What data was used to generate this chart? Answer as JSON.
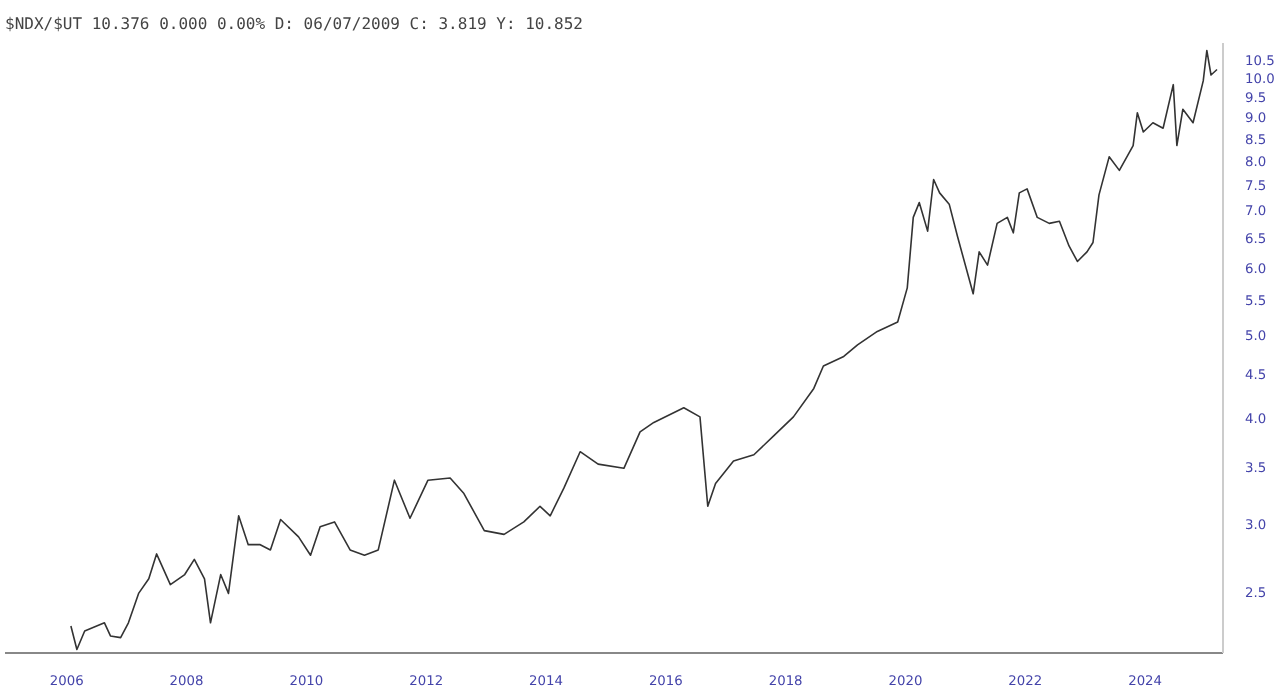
{
  "chart_data": {
    "type": "line",
    "title": "$NDX/$UT 10.376 0.000 0.00% D: 06/07/2009 C: 3.819 Y: 10.852",
    "log": "y",
    "grid": false,
    "x": [
      2006.07,
      2006.17,
      2006.3,
      2006.63,
      2006.73,
      2006.9,
      2007.03,
      2007.2,
      2007.37,
      2007.5,
      2007.73,
      2007.97,
      2008.13,
      2008.3,
      2008.4,
      2008.57,
      2008.7,
      2008.87,
      2009.03,
      2009.23,
      2009.4,
      2009.57,
      2009.87,
      2010.07,
      2010.23,
      2010.47,
      2010.73,
      2010.97,
      2011.2,
      2011.47,
      2011.73,
      2012.03,
      2012.4,
      2012.63,
      2012.97,
      2013.3,
      2013.63,
      2013.9,
      2014.07,
      2014.3,
      2014.57,
      2014.87,
      2015.3,
      2015.57,
      2015.8,
      2016.3,
      2016.57,
      2016.7,
      2016.83,
      2017.13,
      2017.47,
      2017.8,
      2018.13,
      2018.47,
      2018.63,
      2018.97,
      2019.2,
      2019.53,
      2019.87,
      2020.03,
      2020.13,
      2020.23,
      2020.37,
      2020.47,
      2020.57,
      2020.73,
      2020.87,
      2021.13,
      2021.23,
      2021.37,
      2021.53,
      2021.7,
      2021.8,
      2021.9,
      2022.03,
      2022.2,
      2022.4,
      2022.57,
      2022.73,
      2022.87,
      2023.03,
      2023.13,
      2023.23,
      2023.4,
      2023.57,
      2023.8,
      2023.87,
      2023.97,
      2024.13,
      2024.3,
      2024.47,
      2024.53,
      2024.63,
      2024.8,
      2024.97,
      2025.03,
      2025.1,
      2025.2
    ],
    "series": [
      {
        "color": "#333333",
        "values": [
          2.28,
          2.14,
          2.25,
          2.3,
          2.22,
          2.21,
          2.3,
          2.49,
          2.59,
          2.77,
          2.55,
          2.62,
          2.73,
          2.59,
          2.3,
          2.62,
          2.49,
          3.07,
          2.84,
          2.84,
          2.8,
          3.04,
          2.9,
          2.76,
          2.98,
          3.02,
          2.8,
          2.76,
          2.8,
          3.38,
          3.05,
          3.38,
          3.4,
          3.26,
          2.95,
          2.92,
          3.02,
          3.15,
          3.07,
          3.31,
          3.65,
          3.53,
          3.49,
          3.85,
          3.95,
          4.11,
          4.01,
          3.15,
          3.35,
          3.56,
          3.62,
          3.81,
          4.01,
          4.33,
          4.6,
          4.72,
          4.87,
          5.05,
          5.18,
          5.68,
          6.87,
          7.15,
          6.62,
          7.61,
          7.34,
          7.12,
          6.52,
          5.59,
          6.26,
          6.04,
          6.76,
          6.87,
          6.59,
          7.34,
          7.42,
          6.87,
          6.76,
          6.8,
          6.36,
          6.1,
          6.26,
          6.42,
          7.3,
          8.09,
          7.8,
          8.34,
          9.11,
          8.65,
          8.87,
          8.74,
          9.83,
          8.34,
          9.2,
          8.87,
          9.93,
          10.78,
          10.09,
          10.24
        ]
      }
    ],
    "xlim": [
      2004.97,
      2025.3
    ],
    "xticks": [
      2006,
      2008,
      2010,
      2012,
      2014,
      2016,
      2018,
      2020,
      2022,
      2024
    ],
    "ylim": [
      2.12,
      11.0
    ],
    "yticks": [
      2.5,
      {
        "value": 3,
        "label": "3.0"
      },
      3.5,
      {
        "value": 4,
        "label": "4.0"
      },
      4.5,
      {
        "value": 5,
        "label": "5.0"
      },
      5.5,
      {
        "value": 6,
        "label": "6.0"
      },
      6.5,
      {
        "value": 7,
        "label": "7.0"
      },
      7.5,
      {
        "value": 8,
        "label": "8.0"
      },
      8.5,
      {
        "value": 9,
        "label": "9.0"
      },
      9.5,
      {
        "value": 10,
        "label": "10.0"
      },
      10.5
    ]
  }
}
